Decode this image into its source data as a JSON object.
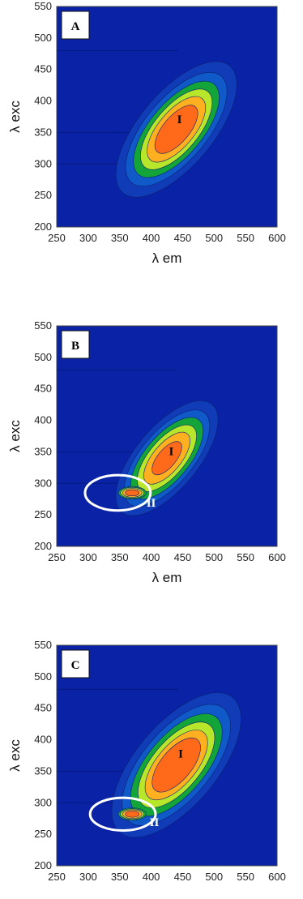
{
  "colors": {
    "background": "#0a23a6",
    "level1": "#103cb8",
    "level2": "#0f5ac8",
    "level3": "#13a43a",
    "level4": "#b8e62a",
    "level5": "#ffb020",
    "level6": "#ff6a1a",
    "white": "#ffffff"
  },
  "chart_data": [
    {
      "type": "heatmap",
      "panel_label": "A",
      "xlabel": "λ em",
      "ylabel": "λ exc",
      "xlim": [
        250,
        600
      ],
      "ylim": [
        200,
        550
      ],
      "x_ticks": [
        "250",
        "300",
        "350",
        "400",
        "450",
        "500",
        "550",
        "600"
      ],
      "y_ticks": [
        "200",
        "250",
        "300",
        "350",
        "400",
        "450",
        "500",
        "550"
      ],
      "regions": [
        {
          "label": "I",
          "label_at": [
            445,
            365
          ],
          "center": [
            440,
            355
          ],
          "major": 85,
          "minor": 38,
          "angle_deg": 50,
          "levels": [
            1.55,
            1.3,
            1.1,
            0.92,
            0.75,
            0.55
          ],
          "color": "#000000"
        }
      ],
      "circles": []
    },
    {
      "type": "heatmap",
      "panel_label": "B",
      "xlabel": "λ em",
      "ylabel": "λ exc",
      "xlim": [
        250,
        600
      ],
      "ylim": [
        200,
        550
      ],
      "x_ticks": [
        "250",
        "300",
        "350",
        "400",
        "450",
        "500",
        "550",
        "600"
      ],
      "y_ticks": [
        "200",
        "250",
        "300",
        "350",
        "400",
        "450",
        "500",
        "550"
      ],
      "regions": [
        {
          "label": "I",
          "label_at": [
            432,
            345
          ],
          "center": [
            425,
            340
          ],
          "major": 72,
          "minor": 32,
          "angle_deg": 50,
          "levels": [
            1.55,
            1.3,
            1.1,
            0.9,
            0.7,
            0.45
          ],
          "color": "#000000"
        },
        {
          "label": "II",
          "label_at": [
            400,
            263
          ],
          "center": [
            370,
            285
          ],
          "major": 22,
          "minor": 10,
          "angle_deg": 0,
          "levels": [
            0,
            0,
            1.0,
            0.85,
            0.7,
            0.5
          ],
          "color": "#ffffff"
        }
      ],
      "circles": [
        {
          "center": [
            347,
            285
          ],
          "rx": 52,
          "ry": 28
        }
      ]
    },
    {
      "type": "heatmap",
      "panel_label": "C",
      "xlabel": "",
      "ylabel": "λ exc",
      "xlim": [
        250,
        600
      ],
      "ylim": [
        200,
        550
      ],
      "x_ticks": [
        "250",
        "300",
        "350",
        "400",
        "450",
        "500",
        "550",
        "600"
      ],
      "y_ticks": [
        "200",
        "250",
        "300",
        "350",
        "400",
        "450",
        "500",
        "550"
      ],
      "regions": [
        {
          "label": "I",
          "label_at": [
            447,
            372
          ],
          "center": [
            440,
            360
          ],
          "major": 90,
          "minor": 42,
          "angle_deg": 50,
          "levels": [
            1.55,
            1.3,
            1.1,
            0.92,
            0.75,
            0.58
          ],
          "color": "#000000"
        },
        {
          "label": "II",
          "label_at": [
            405,
            263
          ],
          "center": [
            370,
            282
          ],
          "major": 22,
          "minor": 10,
          "angle_deg": 0,
          "levels": [
            0,
            0,
            1.0,
            0.85,
            0.7,
            0.5
          ],
          "color": "#ffffff"
        }
      ],
      "circles": [
        {
          "center": [
            355,
            282
          ],
          "rx": 52,
          "ry": 26
        }
      ]
    }
  ]
}
